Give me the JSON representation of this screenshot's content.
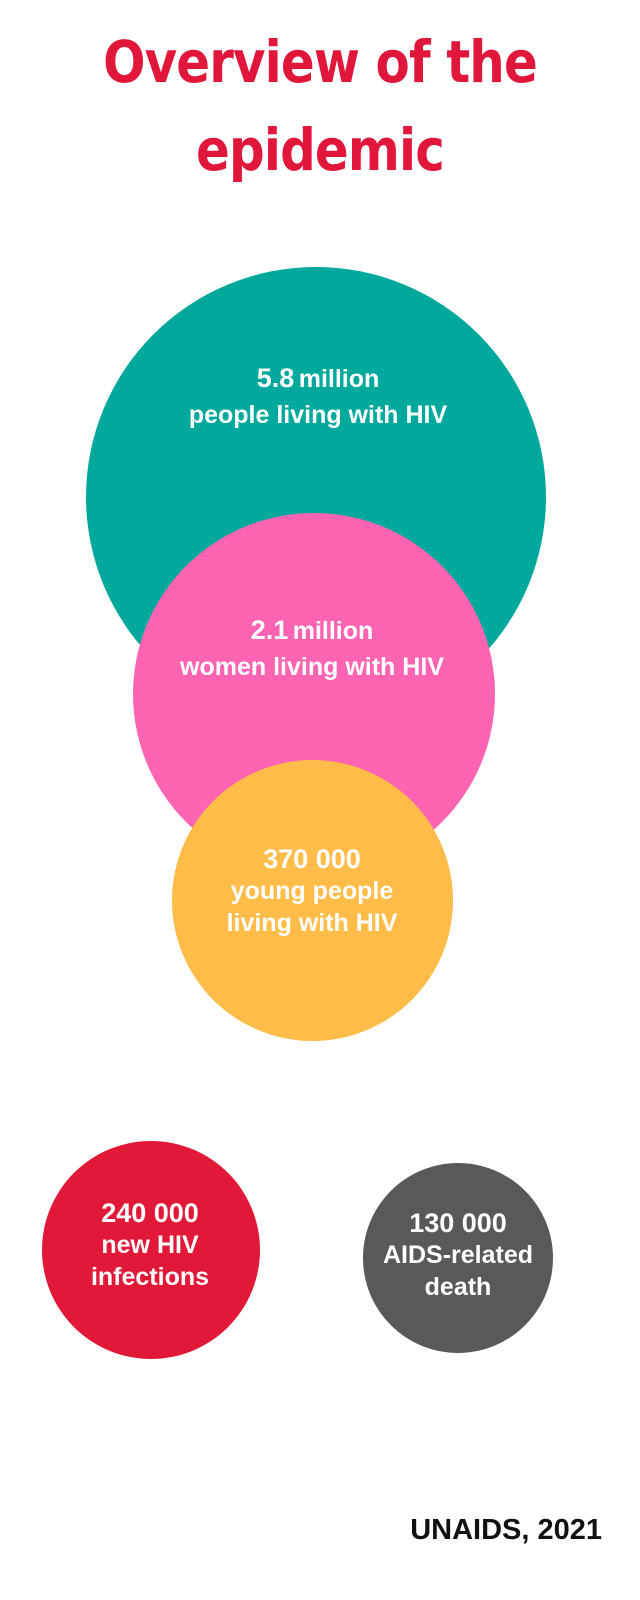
{
  "title": {
    "line1": "Overview of the",
    "line2": "epidemic"
  },
  "stats": {
    "people_living": {
      "number": "5.8",
      "unit": "million",
      "description": "people living with HIV",
      "color": "#00a99c"
    },
    "women_living": {
      "number": "2.1",
      "unit": "million",
      "description": "women living with HIV",
      "color": "#ff64b2"
    },
    "young_people": {
      "number": "370 000",
      "description_line1": "young people",
      "description_line2": "living with HIV",
      "color": "#ffbc48"
    },
    "new_infections": {
      "number": "240 000",
      "description_line1": "new HIV",
      "description_line2": "infections",
      "color": "#e11838"
    },
    "aids_deaths": {
      "number": "130 000",
      "description_line1": "AIDS-related",
      "description_line2": "death",
      "color": "#595959"
    }
  },
  "source": "UNAIDS, 2021"
}
